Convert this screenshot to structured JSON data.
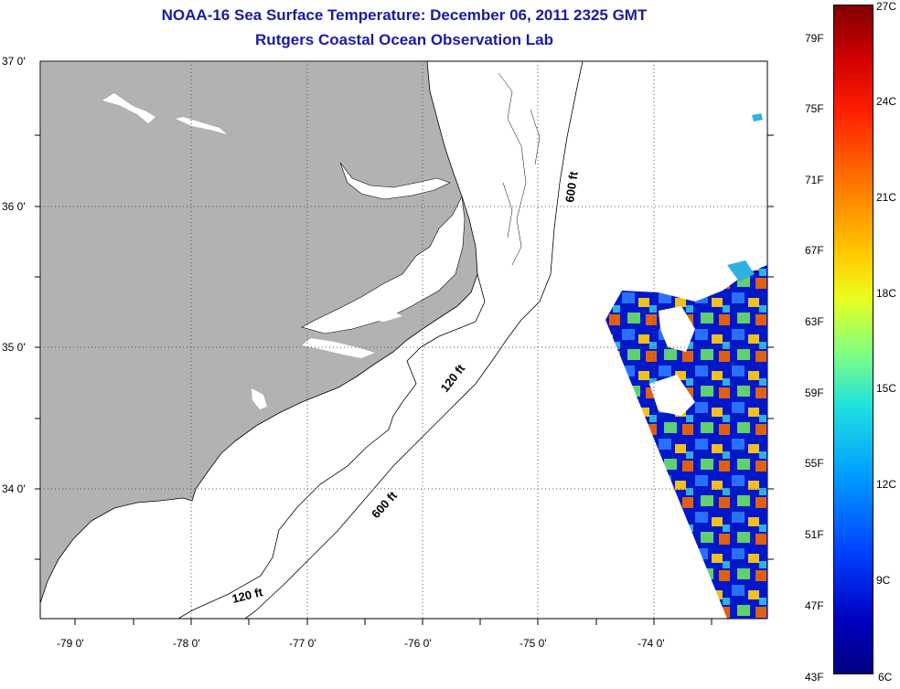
{
  "header": {
    "title": "NOAA-16 Sea Surface Temperature:  December 06, 2011 2325 GMT",
    "subtitle": "Rutgers Coastal Ocean Observation Lab"
  },
  "map": {
    "lon_labels": [
      "-79 0'",
      "-78 0'",
      "-77 0'",
      "-76 0'",
      "-75 0'",
      "-74 0'"
    ],
    "lat_labels": [
      "37 0'",
      "36 0'",
      "35 0'",
      "34 0'"
    ],
    "contour_labels": [
      "600 ft",
      "120 ft",
      "600 ft",
      "120 ft"
    ],
    "colors": {
      "land": "#b2b2b2",
      "water": "#ffffff",
      "title": "#1a1aa6"
    }
  },
  "colorbar": {
    "fahrenheit_labels": [
      "79F",
      "75F",
      "71F",
      "67F",
      "63F",
      "59F",
      "55F",
      "51F",
      "47F",
      "43F"
    ],
    "celsius_labels": [
      "27C",
      "24C",
      "21C",
      "18C",
      "15C",
      "12C",
      "9C",
      "6C"
    ],
    "scale": "jet"
  }
}
